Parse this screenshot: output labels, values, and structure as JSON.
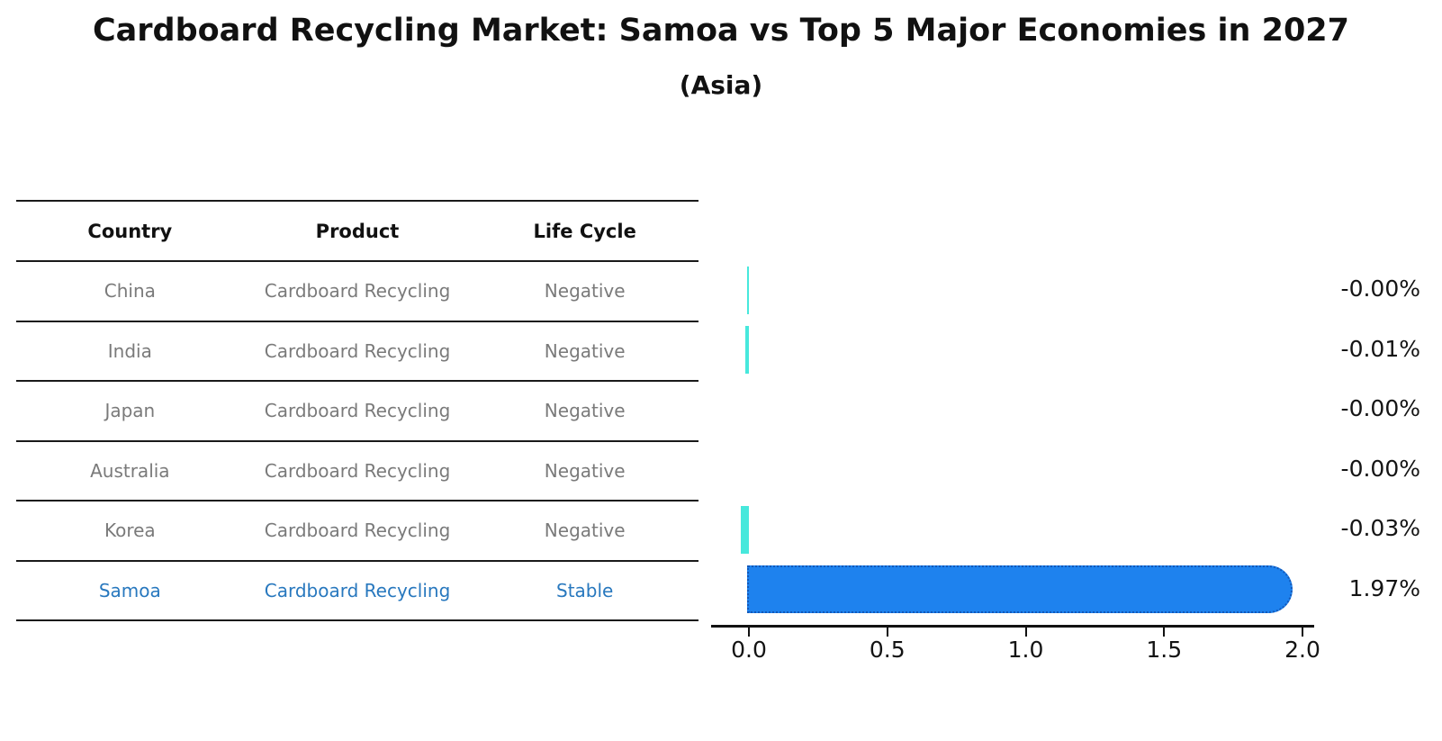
{
  "title": "Cardboard Recycling Market: Samoa vs Top 5 Major Economies in 2027",
  "subtitle": "(Asia)",
  "table": {
    "headers": {
      "country": "Country",
      "product": "Product",
      "life_cycle": "Life Cycle"
    },
    "rows": [
      {
        "country": "China",
        "product": "Cardboard Recycling",
        "life_cycle": "Negative",
        "highlight": false
      },
      {
        "country": "India",
        "product": "Cardboard Recycling",
        "life_cycle": "Negative",
        "highlight": false
      },
      {
        "country": "Japan",
        "product": "Cardboard Recycling",
        "life_cycle": "Negative",
        "highlight": false
      },
      {
        "country": "Australia",
        "product": "Cardboard Recycling",
        "life_cycle": "Negative",
        "highlight": false
      },
      {
        "country": "Korea",
        "product": "Cardboard Recycling",
        "life_cycle": "Negative",
        "highlight": false
      },
      {
        "country": "Samoa",
        "product": "Cardboard Recycling",
        "life_cycle": "Stable",
        "highlight": true
      }
    ]
  },
  "chart_data": {
    "type": "bar",
    "orientation": "horizontal",
    "title": "Cardboard Recycling Market: Samoa vs Top 5 Major Economies in 2027",
    "subtitle": "(Asia)",
    "categories": [
      "China",
      "India",
      "Japan",
      "Australia",
      "Korea",
      "Samoa"
    ],
    "values": [
      -0.005,
      -0.012,
      -0.0002,
      -0.0002,
      -0.03,
      1.97
    ],
    "value_labels": [
      "-0.00%",
      "-0.01%",
      "-0.00%",
      "-0.00%",
      "-0.03%",
      "1.97%"
    ],
    "xlabel": "",
    "ylabel": "",
    "xlim": [
      0.0,
      2.0
    ],
    "x_ticks": [
      "0.0",
      "0.5",
      "1.0",
      "1.5",
      "2.0"
    ],
    "x_tick_values": [
      0.0,
      0.5,
      1.0,
      1.5,
      2.0
    ],
    "grid": false,
    "legend": false,
    "colors": {
      "negative_bar": "#47e8dc",
      "highlight_bar": "#1e82ee",
      "highlight_bar_border": "#1358b8",
      "highlight_text": "#2878be",
      "table_text": "#7a7a7a",
      "header_text": "#111111"
    }
  }
}
